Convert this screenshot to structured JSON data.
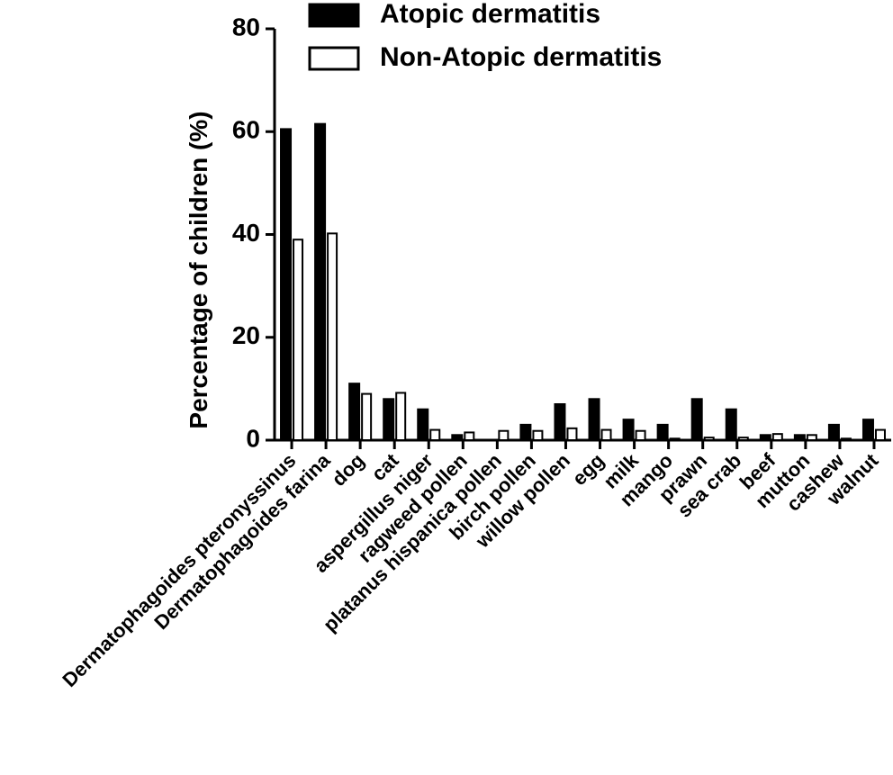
{
  "chart_data": {
    "type": "bar",
    "y_label": "Percentage of children (%)",
    "categories": [
      "Dermatophagoides pteronyssinus",
      "Dermatophagoides farina",
      "dog",
      "cat",
      "aspergillus niger",
      "ragweed pollen",
      "platanus hispanica pollen",
      "birch pollen",
      "willow pollen",
      "egg",
      "milk",
      "mango",
      "prawn",
      "sea crab",
      "beef",
      "mutton",
      "cashew",
      "walnut"
    ],
    "series": [
      {
        "name": "Atopic dermatitis",
        "color": "#000000",
        "values": [
          60.5,
          61.5,
          11,
          8,
          6,
          1,
          0,
          3,
          7,
          8,
          4,
          3,
          8,
          6,
          1,
          1,
          3,
          4
        ]
      },
      {
        "name": "Non-Atopic dermatitis",
        "color": "#ffffff",
        "values": [
          39,
          40.2,
          9,
          9.2,
          2,
          1.5,
          1.8,
          1.8,
          2.3,
          2,
          1.8,
          0.3,
          0.5,
          0.5,
          1.2,
          1,
          0.3,
          2
        ]
      }
    ],
    "ylim": [
      0,
      80
    ],
    "yticks": [
      0,
      20,
      40,
      60,
      80
    ],
    "legend": "top"
  }
}
